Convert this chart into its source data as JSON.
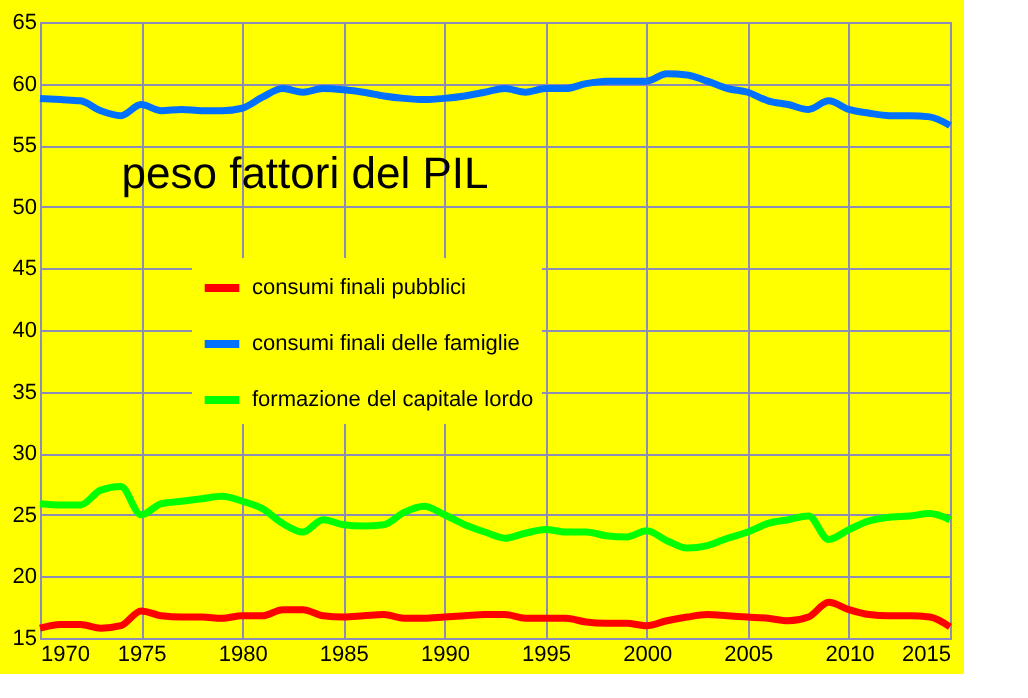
{
  "chart_data": {
    "type": "line",
    "title": "peso fattori del PIL",
    "x": [
      1970,
      1971,
      1972,
      1973,
      1974,
      1975,
      1976,
      1977,
      1978,
      1979,
      1980,
      1981,
      1982,
      1983,
      1984,
      1985,
      1986,
      1987,
      1988,
      1989,
      1990,
      1991,
      1992,
      1993,
      1994,
      1995,
      1996,
      1997,
      1998,
      1999,
      2000,
      2001,
      2002,
      2003,
      2004,
      2005,
      2006,
      2007,
      2008,
      2009,
      2010,
      2011,
      2012,
      2013,
      2014,
      2015
    ],
    "series": [
      {
        "name": "consumi finali pubblici",
        "color": "#ff0000",
        "values": [
          15.8,
          16.1,
          16.1,
          15.8,
          16.0,
          17.2,
          16.8,
          16.7,
          16.7,
          16.6,
          16.8,
          16.8,
          17.3,
          17.3,
          16.8,
          16.7,
          16.8,
          16.9,
          16.6,
          16.6,
          16.7,
          16.8,
          16.9,
          16.9,
          16.6,
          16.6,
          16.6,
          16.3,
          16.2,
          16.2,
          16.0,
          16.4,
          16.7,
          16.9,
          16.8,
          16.7,
          16.6,
          16.4,
          16.7,
          17.9,
          17.3,
          16.9,
          16.8,
          16.8,
          16.7,
          15.9
        ]
      },
      {
        "name": "consumi finali delle famiglie",
        "color": "#0070ff",
        "values": [
          58.8,
          58.7,
          58.6,
          57.8,
          57.4,
          58.3,
          57.8,
          57.9,
          57.8,
          57.8,
          58.0,
          58.9,
          59.6,
          59.3,
          59.6,
          59.5,
          59.3,
          59.0,
          58.8,
          58.7,
          58.8,
          59.0,
          59.3,
          59.6,
          59.3,
          59.6,
          59.6,
          60.0,
          60.2,
          60.2,
          60.2,
          60.8,
          60.7,
          60.2,
          59.6,
          59.3,
          58.6,
          58.3,
          57.9,
          58.6,
          57.9,
          57.6,
          57.4,
          57.4,
          57.3,
          56.6
        ]
      },
      {
        "name": "formazione del capitale lordo",
        "color": "#00ff00",
        "values": [
          25.9,
          25.8,
          25.8,
          27.0,
          27.3,
          25.0,
          25.9,
          26.1,
          26.3,
          26.5,
          26.1,
          25.5,
          24.3,
          23.6,
          24.6,
          24.2,
          24.1,
          24.2,
          25.2,
          25.7,
          25.0,
          24.2,
          23.6,
          23.1,
          23.5,
          23.8,
          23.6,
          23.6,
          23.3,
          23.2,
          23.7,
          22.9,
          22.3,
          22.5,
          23.1,
          23.6,
          24.3,
          24.6,
          24.9,
          23.0,
          23.8,
          24.5,
          24.8,
          24.9,
          25.1,
          24.6
        ]
      }
    ],
    "xlim": [
      1970,
      2015
    ],
    "xticks": [
      1970,
      1975,
      1980,
      1985,
      1990,
      1995,
      2000,
      2005,
      2010,
      2015
    ],
    "ylim": [
      15,
      65
    ],
    "yticks": [
      15,
      20,
      25,
      30,
      35,
      40,
      45,
      50,
      55,
      60,
      65
    ],
    "grid": true,
    "legend": "left"
  }
}
